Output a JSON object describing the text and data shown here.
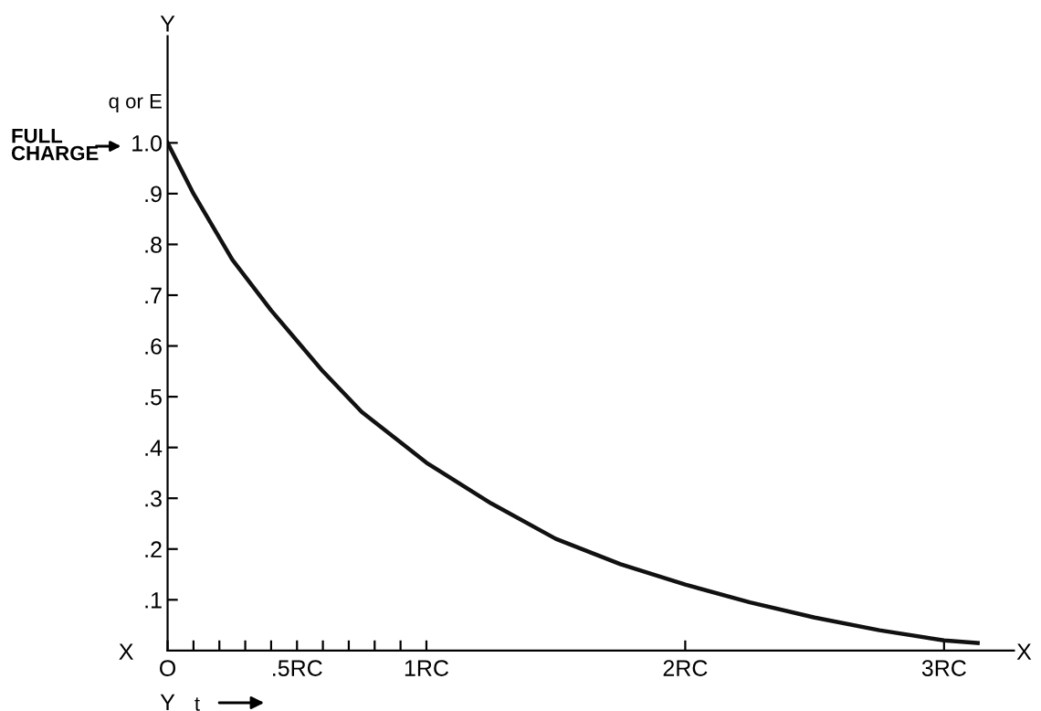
{
  "chart_data": {
    "type": "line",
    "xlabel": "t",
    "ylabel": "q or E",
    "x": [
      0,
      0.1,
      0.25,
      0.4,
      0.5,
      0.6,
      0.75,
      0.9,
      1,
      1.25,
      1.5,
      1.75,
      2,
      2.25,
      2.5,
      2.75,
      3,
      3.13
    ],
    "series": [
      {
        "color": "#111111",
        "values": [
          1.0,
          0.9,
          0.77,
          0.67,
          0.61,
          0.55,
          0.47,
          0.41,
          0.37,
          0.29,
          0.22,
          0.17,
          0.13,
          0.095,
          0.065,
          0.04,
          0.02,
          0.015
        ]
      }
    ],
    "xlim": [
      0,
      3.27
    ],
    "ylim": [
      0,
      1.21
    ],
    "xticks": [
      {
        "value": 0,
        "label": "O"
      },
      {
        "value": 0.1,
        "label": null
      },
      {
        "value": 0.2,
        "label": null
      },
      {
        "value": 0.3,
        "label": null
      },
      {
        "value": 0.4,
        "label": null
      },
      {
        "value": 0.5,
        "label": ".5RC"
      },
      {
        "value": 0.6,
        "label": null
      },
      {
        "value": 0.7,
        "label": null
      },
      {
        "value": 0.8,
        "label": null
      },
      {
        "value": 0.9,
        "label": null
      },
      {
        "value": 1,
        "label": "1RC"
      },
      {
        "value": 2,
        "label": "2RC"
      },
      {
        "value": 3,
        "label": "3RC"
      }
    ],
    "yticks": [
      {
        "value": 0.1,
        "label": ".1"
      },
      {
        "value": 0.2,
        "label": ".2"
      },
      {
        "value": 0.3,
        "label": ".3"
      },
      {
        "value": 0.4,
        "label": ".4"
      },
      {
        "value": 0.5,
        "label": ".5"
      },
      {
        "value": 0.6,
        "label": ".6"
      },
      {
        "value": 0.7,
        "label": ".7"
      },
      {
        "value": 0.8,
        "label": ".8"
      },
      {
        "value": 0.9,
        "label": ".9"
      },
      {
        "value": 1.0,
        "label": "1.0"
      }
    ],
    "annotations": [
      "FULL\nCHARGE",
      "X",
      "X",
      "Y",
      "Y"
    ],
    "grid": false,
    "legend": false,
    "marker": "none",
    "line_style": "solid"
  }
}
